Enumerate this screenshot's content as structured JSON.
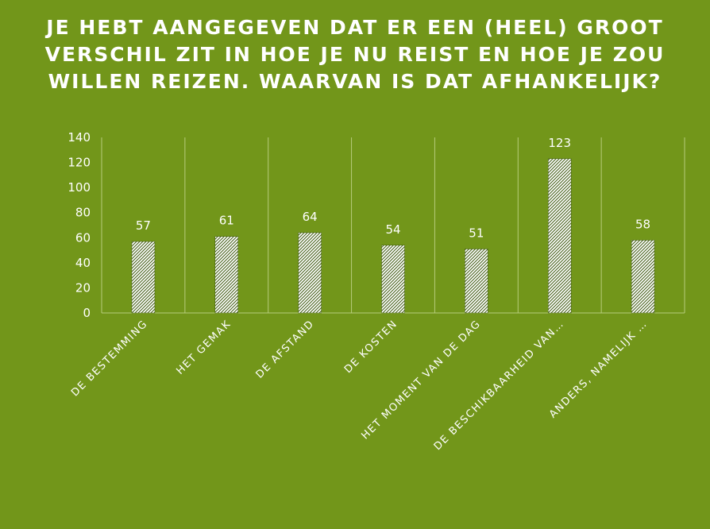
{
  "chart_data": {
    "type": "bar",
    "title": "JE HEBT AANGEGEVEN DAT ER EEN (HEEL) GROOT VERSCHIL ZIT IN HOE JE NU REIST EN HOE JE ZOU WILLEN REIZEN. WAARVAN IS DAT AFHANKELIJK?",
    "categories": [
      "DE BESTEMMING",
      "HET GEMAK",
      "DE AFSTAND",
      "DE KOSTEN",
      "HET MOMENT VAN DE DAG",
      "DE BESCHIKBAARHEID VAN…",
      "ANDERS, NAMELIJK …"
    ],
    "values": [
      57,
      61,
      64,
      54,
      51,
      123,
      58
    ],
    "yticks": [
      0,
      20,
      40,
      60,
      80,
      100,
      120,
      140
    ],
    "ylim": [
      0,
      140
    ],
    "grid": "vertical",
    "legend": "none",
    "colors": {
      "background": "#72961a",
      "bar_fill": "#ffffff",
      "bar_hatch": "#3f5a12",
      "text": "#ffffff",
      "gridline": "#b7cc7c"
    }
  }
}
